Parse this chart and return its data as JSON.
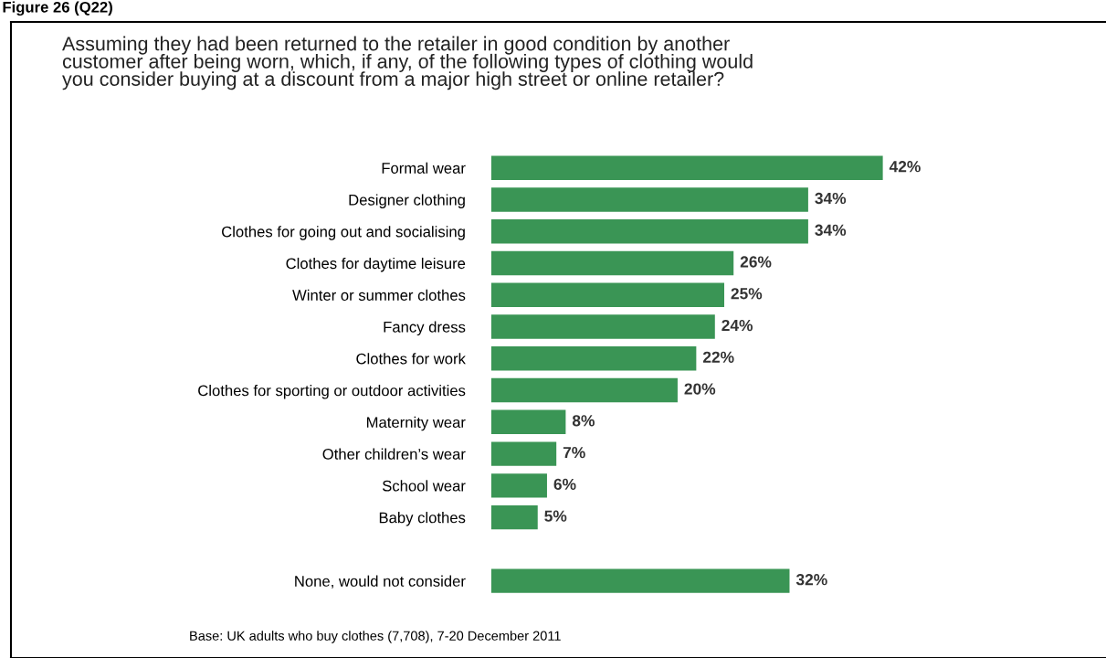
{
  "chart_data": {
    "type": "bar",
    "orientation": "horizontal",
    "title": "Figure 26 (Q22)",
    "subtitle": "Assuming they had been returned to the retailer in good condition by another\ncustomer after being worn, which, if any, of the following types of clothing would\nyou consider buying at a discount from a major high street or online retailer?",
    "categories": [
      "Formal wear",
      "Designer clothing",
      "Clothes for going out and socialising",
      "Clothes for daytime leisure",
      "Winter or summer clothes",
      "Fancy dress",
      "Clothes for work",
      "Clothes for sporting or outdoor activities",
      "Maternity wear",
      "Other children’s wear",
      "School wear",
      "Baby clothes",
      null,
      "None, would not consider"
    ],
    "values": [
      42,
      34,
      34,
      26,
      25,
      24,
      22,
      20,
      8,
      7,
      6,
      5,
      null,
      32
    ],
    "value_labels": [
      "42%",
      "34%",
      "34%",
      "26%",
      "25%",
      "24%",
      "22%",
      "20%",
      "8%",
      "7%",
      "6%",
      "5%",
      null,
      "32%"
    ],
    "color": "#3a9555",
    "tick_labels": "y",
    "grid": false,
    "legend": false,
    "annotations": [
      "Base: UK adults who buy clothes (7,708), 7-20 December 2011"
    ]
  }
}
